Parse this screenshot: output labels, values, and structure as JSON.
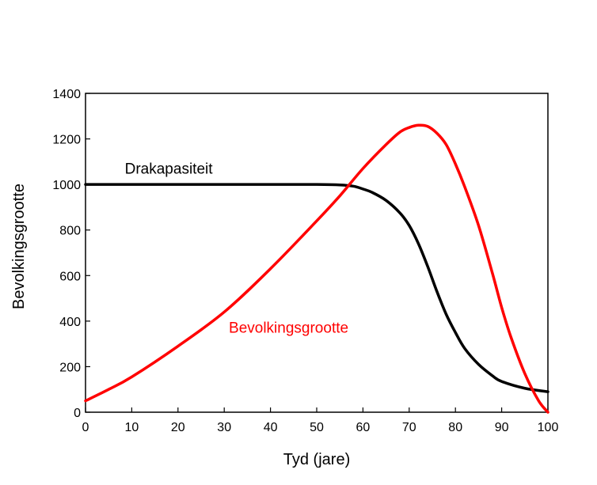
{
  "chart_data": {
    "type": "line",
    "xlabel": "Tyd (jare)",
    "ylabel": "Bevolkingsgrootte",
    "xlim": [
      0,
      100
    ],
    "ylim": [
      0,
      1400
    ],
    "x_ticks": [
      0,
      10,
      20,
      30,
      40,
      50,
      60,
      70,
      80,
      90,
      100
    ],
    "y_ticks": [
      0,
      200,
      400,
      600,
      800,
      1000,
      1200,
      1400
    ],
    "grid": false,
    "legend": "inline labels",
    "series": [
      {
        "name": "Drakapasiteit",
        "color": "#000000",
        "x": [
          0,
          10,
          20,
          30,
          40,
          50,
          55,
          58,
          60,
          62,
          65,
          68,
          70,
          72,
          74,
          76,
          78,
          80,
          82,
          85,
          88,
          90,
          95,
          100
        ],
        "y": [
          1000,
          1000,
          1000,
          1000,
          1000,
          1000,
          998,
          992,
          980,
          965,
          930,
          875,
          820,
          740,
          640,
          530,
          430,
          350,
          280,
          210,
          160,
          135,
          105,
          90
        ]
      },
      {
        "name": "Bevolkingsgrootte",
        "color": "#ff0000",
        "x": [
          0,
          5,
          10,
          20,
          30,
          40,
          50,
          55,
          60,
          65,
          68,
          70,
          72,
          74,
          76,
          78,
          80,
          82,
          85,
          88,
          90,
          92,
          95,
          98,
          100
        ],
        "y": [
          50,
          100,
          155,
          290,
          440,
          630,
          840,
          950,
          1070,
          1175,
          1230,
          1250,
          1260,
          1255,
          1225,
          1175,
          1090,
          990,
          820,
          610,
          460,
          330,
          170,
          50,
          0
        ]
      }
    ]
  }
}
